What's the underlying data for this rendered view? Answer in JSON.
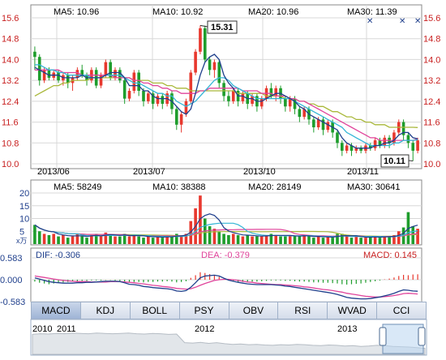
{
  "colors": {
    "up": "#e8382e",
    "down": "#1e9d2c",
    "ma5": "#1f3f8c",
    "ma10": "#33b5d6",
    "ma20": "#e0449b",
    "ma30": "#a9b83a",
    "axis_red": "#c81e1e",
    "axis_blue": "#1f3f8c",
    "grid": "#d8d8d8"
  },
  "chart_data": [
    {
      "type": "candlestick",
      "name": "price",
      "legend": {
        "ma5": "MA5: 10.96",
        "ma10": "MA10: 10.92",
        "ma20": "MA20: 10.96",
        "ma30": "MA30: 11.39"
      },
      "y_ticks": [
        "15.6",
        "14.8",
        "14.0",
        "13.2",
        "12.4",
        "11.6",
        "10.8",
        "10.0"
      ],
      "ylim": [
        10.0,
        15.6
      ],
      "x_labels": [
        "2013/06",
        "2013/07",
        "2013/10",
        "2013/11"
      ],
      "annotations": {
        "high": "15.31",
        "low": "10.11"
      },
      "high_value": 15.31,
      "low_value": 10.11,
      "candles": [
        [
          14.3,
          14.1,
          14.5,
          13.6
        ],
        [
          14.1,
          13.2,
          14.2,
          13.0
        ],
        [
          13.2,
          13.6,
          13.7,
          13.1
        ],
        [
          13.6,
          13.3,
          13.7,
          13.2
        ],
        [
          13.3,
          13.5,
          13.6,
          13.2
        ],
        [
          13.5,
          13.2,
          13.6,
          13.1
        ],
        [
          13.2,
          13.4,
          13.5,
          13.0
        ],
        [
          13.4,
          13.1,
          13.5,
          12.9
        ],
        [
          13.1,
          13.3,
          13.4,
          12.8
        ],
        [
          13.3,
          13.6,
          13.7,
          13.2
        ],
        [
          13.6,
          13.4,
          13.8,
          13.3
        ],
        [
          13.4,
          13.2,
          13.5,
          13.0
        ],
        [
          13.2,
          13.6,
          13.7,
          13.1
        ],
        [
          13.6,
          13.0,
          13.7,
          12.9
        ],
        [
          13.0,
          13.4,
          13.5,
          12.9
        ],
        [
          13.4,
          13.9,
          14.0,
          13.3
        ],
        [
          13.9,
          13.3,
          14.0,
          13.2
        ],
        [
          13.3,
          13.6,
          13.7,
          13.2
        ],
        [
          13.6,
          13.2,
          13.7,
          13.1
        ],
        [
          13.2,
          12.5,
          13.3,
          12.3
        ],
        [
          12.5,
          12.8,
          12.9,
          12.4
        ],
        [
          12.8,
          13.5,
          13.6,
          12.7
        ],
        [
          13.5,
          12.8,
          13.6,
          12.6
        ],
        [
          12.8,
          12.4,
          12.9,
          12.2
        ],
        [
          12.4,
          12.7,
          12.8,
          12.3
        ],
        [
          12.7,
          12.3,
          12.8,
          12.1
        ],
        [
          12.3,
          12.6,
          12.7,
          12.2
        ],
        [
          12.6,
          12.3,
          12.7,
          12.1
        ],
        [
          12.3,
          12.7,
          12.8,
          12.2
        ],
        [
          12.7,
          12.1,
          12.8,
          11.9
        ],
        [
          12.1,
          11.5,
          12.2,
          11.3
        ],
        [
          11.5,
          11.9,
          12.0,
          11.2
        ],
        [
          11.9,
          12.4,
          12.5,
          11.8
        ],
        [
          12.4,
          13.5,
          13.6,
          12.3
        ],
        [
          13.5,
          14.3,
          14.4,
          13.4
        ],
        [
          14.3,
          15.2,
          15.31,
          14.2
        ],
        [
          15.2,
          14.0,
          15.3,
          13.9
        ],
        [
          14.0,
          13.6,
          14.1,
          13.4
        ],
        [
          13.6,
          13.9,
          14.0,
          13.3
        ],
        [
          13.9,
          13.1,
          14.0,
          12.9
        ],
        [
          13.1,
          12.6,
          13.2,
          12.4
        ],
        [
          12.6,
          12.4,
          12.8,
          12.2
        ],
        [
          12.4,
          12.8,
          12.9,
          12.3
        ],
        [
          12.8,
          12.4,
          12.9,
          12.2
        ],
        [
          12.4,
          12.7,
          12.8,
          12.3
        ],
        [
          12.7,
          12.3,
          12.8,
          12.1
        ],
        [
          12.3,
          12.6,
          12.7,
          12.2
        ],
        [
          12.6,
          12.2,
          12.7,
          12.0
        ],
        [
          12.2,
          12.5,
          12.6,
          12.1
        ],
        [
          12.5,
          12.9,
          13.0,
          12.4
        ],
        [
          12.9,
          12.6,
          13.1,
          12.5
        ],
        [
          12.6,
          12.9,
          13.0,
          12.4
        ],
        [
          12.9,
          12.5,
          13.0,
          12.3
        ],
        [
          12.5,
          12.2,
          12.6,
          12.0
        ],
        [
          12.2,
          12.5,
          12.6,
          12.0
        ],
        [
          12.5,
          12.1,
          12.6,
          11.9
        ],
        [
          12.1,
          11.8,
          12.2,
          11.6
        ],
        [
          11.8,
          12.1,
          12.2,
          11.7
        ],
        [
          12.1,
          11.7,
          12.2,
          11.5
        ],
        [
          11.7,
          11.4,
          11.8,
          11.2
        ],
        [
          11.4,
          11.7,
          11.8,
          11.3
        ],
        [
          11.7,
          11.3,
          11.8,
          11.1
        ],
        [
          11.3,
          11.6,
          11.7,
          11.2
        ],
        [
          11.6,
          11.2,
          11.7,
          11.0
        ],
        [
          11.2,
          10.8,
          11.3,
          10.6
        ],
        [
          10.8,
          10.5,
          10.9,
          10.3
        ],
        [
          10.5,
          10.7,
          10.8,
          10.4
        ],
        [
          10.7,
          10.5,
          10.8,
          10.3
        ],
        [
          10.5,
          10.6,
          10.7,
          10.4
        ],
        [
          10.6,
          10.5,
          10.7,
          10.4
        ],
        [
          10.5,
          10.7,
          10.8,
          10.4
        ],
        [
          10.7,
          10.6,
          10.8,
          10.5
        ],
        [
          10.6,
          10.9,
          11.0,
          10.5
        ],
        [
          10.9,
          10.7,
          11.0,
          10.6
        ],
        [
          10.7,
          11.0,
          11.1,
          10.6
        ],
        [
          11.0,
          10.8,
          11.1,
          10.6
        ],
        [
          10.8,
          11.2,
          11.3,
          10.7
        ],
        [
          11.2,
          11.6,
          11.7,
          11.1
        ],
        [
          11.6,
          11.1,
          11.7,
          10.9
        ],
        [
          11.1,
          10.8,
          11.2,
          10.6
        ],
        [
          10.8,
          10.5,
          10.9,
          10.11
        ],
        [
          10.5,
          10.9,
          11.0,
          10.4
        ]
      ],
      "ma_series": {
        "ma5": [
          13.7,
          13.6,
          13.5,
          13.4,
          13.4,
          13.4,
          13.3,
          13.3,
          13.3,
          13.3,
          13.4,
          13.3,
          13.3,
          13.3,
          13.3,
          13.4,
          13.5,
          13.5,
          13.5,
          13.3,
          13.0,
          13.0,
          13.0,
          12.8,
          12.8,
          12.6,
          12.5,
          12.5,
          12.5,
          12.4,
          12.2,
          12.0,
          11.9,
          12.1,
          12.7,
          13.4,
          13.9,
          14.1,
          14.2,
          14.0,
          13.4,
          13.1,
          12.9,
          12.6,
          12.6,
          12.5,
          12.5,
          12.4,
          12.4,
          12.5,
          12.6,
          12.7,
          12.7,
          12.6,
          12.5,
          12.4,
          12.2,
          12.1,
          11.9,
          11.8,
          11.7,
          11.6,
          11.5,
          11.4,
          11.3,
          11.0,
          10.8,
          10.7,
          10.6,
          10.6,
          10.6,
          10.6,
          10.7,
          10.7,
          10.8,
          10.8,
          10.9,
          11.1,
          11.2,
          11.2,
          11.0,
          10.96
        ],
        "ma10": [
          13.8,
          13.8,
          13.7,
          13.6,
          13.6,
          13.5,
          13.5,
          13.4,
          13.4,
          13.4,
          13.4,
          13.4,
          13.3,
          13.3,
          13.3,
          13.4,
          13.4,
          13.4,
          13.4,
          13.3,
          13.2,
          13.1,
          13.1,
          13.0,
          12.9,
          12.8,
          12.7,
          12.7,
          12.6,
          12.6,
          12.4,
          12.3,
          12.2,
          12.3,
          12.4,
          12.6,
          12.8,
          13.0,
          13.2,
          13.3,
          13.3,
          13.2,
          13.0,
          12.9,
          12.8,
          12.7,
          12.6,
          12.5,
          12.5,
          12.5,
          12.5,
          12.5,
          12.5,
          12.5,
          12.5,
          12.4,
          12.3,
          12.2,
          12.1,
          12.0,
          11.9,
          11.8,
          11.7,
          11.6,
          11.5,
          11.4,
          11.2,
          11.1,
          11.0,
          10.9,
          10.8,
          10.7,
          10.7,
          10.7,
          10.7,
          10.7,
          10.8,
          10.8,
          10.9,
          10.9,
          10.9,
          10.92
        ],
        "ma20": [
          13.6,
          13.6,
          13.6,
          13.6,
          13.6,
          13.6,
          13.5,
          13.5,
          13.5,
          13.5,
          13.4,
          13.4,
          13.4,
          13.4,
          13.4,
          13.4,
          13.4,
          13.3,
          13.3,
          13.3,
          13.3,
          13.2,
          13.2,
          13.1,
          13.1,
          13.0,
          13.0,
          12.9,
          12.9,
          12.8,
          12.8,
          12.7,
          12.7,
          12.7,
          12.7,
          12.8,
          12.8,
          12.9,
          12.9,
          12.9,
          12.9,
          12.9,
          12.9,
          12.9,
          12.8,
          12.8,
          12.8,
          12.8,
          12.7,
          12.7,
          12.7,
          12.6,
          12.6,
          12.6,
          12.5,
          12.5,
          12.4,
          12.4,
          12.3,
          12.2,
          12.1,
          12.0,
          11.9,
          11.8,
          11.7,
          11.6,
          11.5,
          11.4,
          11.3,
          11.2,
          11.1,
          11.0,
          11.0,
          10.9,
          10.9,
          10.9,
          10.9,
          10.9,
          10.9,
          10.9,
          10.9,
          10.96
        ],
        "ma30": [
          12.6,
          12.7,
          12.8,
          12.9,
          13.0,
          13.0,
          13.1,
          13.1,
          13.2,
          13.2,
          13.2,
          13.2,
          13.3,
          13.3,
          13.3,
          13.3,
          13.3,
          13.3,
          13.3,
          13.3,
          13.3,
          13.2,
          13.2,
          13.2,
          13.2,
          13.1,
          13.1,
          13.1,
          13.0,
          13.0,
          12.9,
          12.9,
          12.9,
          12.8,
          12.8,
          12.8,
          12.8,
          12.8,
          12.8,
          12.8,
          12.8,
          12.8,
          12.8,
          12.7,
          12.7,
          12.7,
          12.7,
          12.7,
          12.7,
          12.6,
          12.6,
          12.6,
          12.6,
          12.5,
          12.5,
          12.5,
          12.4,
          12.4,
          12.3,
          12.3,
          12.2,
          12.2,
          12.1,
          12.0,
          12.0,
          11.9,
          11.8,
          11.8,
          11.7,
          11.7,
          11.6,
          11.6,
          11.5,
          11.5,
          11.5,
          11.4,
          11.4,
          11.4,
          11.4,
          11.4,
          11.4,
          11.39
        ]
      }
    },
    {
      "type": "bar",
      "name": "volume",
      "legend": {
        "ma5": "MA5: 58249",
        "ma10": "MA10: 38388",
        "ma20": "MA20: 28149",
        "ma30": "MA30: 30641"
      },
      "y_ticks": [
        "20",
        "15",
        "10",
        "5"
      ],
      "unit": "x万",
      "ylim": [
        0,
        20
      ],
      "values": [
        7.5,
        5,
        4,
        3.5,
        4,
        3,
        3.5,
        2.5,
        3,
        4,
        3,
        2.5,
        3.5,
        4,
        3,
        4.5,
        3.5,
        3,
        3,
        4,
        3,
        3.5,
        3,
        2.5,
        3,
        2.5,
        3,
        2.5,
        3,
        3,
        4,
        3.5,
        4,
        9,
        14,
        19,
        10,
        7,
        6,
        5,
        4,
        3.5,
        4,
        3.5,
        3,
        3.5,
        3,
        3,
        3,
        3.5,
        4,
        3.5,
        3,
        3,
        3.5,
        3,
        3,
        3.5,
        3,
        2.5,
        3,
        2.5,
        3,
        2.5,
        4,
        4,
        3,
        2.5,
        3,
        2.5,
        2.5,
        3,
        3,
        2.5,
        3,
        3,
        3.5,
        5,
        6.5,
        12.5,
        7,
        6
      ]
    },
    {
      "type": "bar",
      "name": "macd",
      "legend": {
        "dif": "DIF: -0.306",
        "dea": "DEA: -0.379",
        "macd": "MACD: 0.145"
      },
      "y_ticks": [
        "0.583",
        "0.000",
        "-0.583"
      ],
      "ylim": [
        -0.583,
        0.583
      ],
      "values": [
        -0.05,
        -0.08,
        -0.1,
        -0.12,
        -0.1,
        -0.08,
        -0.07,
        -0.06,
        -0.05,
        -0.04,
        -0.03,
        -0.03,
        -0.02,
        -0.02,
        -0.02,
        -0.01,
        -0.01,
        -0.02,
        -0.03,
        -0.05,
        -0.07,
        -0.06,
        -0.06,
        -0.07,
        -0.06,
        -0.06,
        -0.05,
        -0.05,
        -0.04,
        -0.05,
        -0.07,
        -0.06,
        -0.04,
        0.05,
        0.12,
        0.2,
        0.18,
        0.15,
        0.12,
        0.08,
        0.02,
        -0.02,
        -0.04,
        -0.06,
        -0.06,
        -0.06,
        -0.05,
        -0.05,
        -0.04,
        -0.03,
        -0.02,
        -0.02,
        -0.02,
        -0.03,
        -0.03,
        -0.04,
        -0.05,
        -0.05,
        -0.06,
        -0.07,
        -0.07,
        -0.08,
        -0.08,
        -0.09,
        -0.1,
        -0.12,
        -0.13,
        -0.12,
        -0.11,
        -0.1,
        -0.08,
        -0.06,
        -0.04,
        -0.02,
        0.01,
        0.03,
        0.06,
        0.1,
        0.13,
        0.12,
        0.14,
        0.145
      ],
      "dif": [
        0.05,
        0.02,
        -0.02,
        -0.05,
        -0.07,
        -0.08,
        -0.09,
        -0.09,
        -0.09,
        -0.08,
        -0.08,
        -0.07,
        -0.07,
        -0.06,
        -0.05,
        -0.04,
        -0.04,
        -0.04,
        -0.05,
        -0.08,
        -0.12,
        -0.13,
        -0.15,
        -0.18,
        -0.19,
        -0.21,
        -0.22,
        -0.23,
        -0.24,
        -0.26,
        -0.3,
        -0.31,
        -0.29,
        -0.2,
        -0.08,
        0.05,
        0.1,
        0.11,
        0.12,
        0.1,
        0.04,
        -0.01,
        -0.04,
        -0.07,
        -0.09,
        -0.11,
        -0.12,
        -0.13,
        -0.13,
        -0.13,
        -0.13,
        -0.14,
        -0.15,
        -0.17,
        -0.18,
        -0.2,
        -0.22,
        -0.24,
        -0.26,
        -0.28,
        -0.3,
        -0.32,
        -0.34,
        -0.36,
        -0.39,
        -0.43,
        -0.47,
        -0.49,
        -0.5,
        -0.51,
        -0.51,
        -0.5,
        -0.48,
        -0.46,
        -0.43,
        -0.4,
        -0.36,
        -0.31,
        -0.27,
        -0.28,
        -0.3,
        -0.306
      ],
      "dea": [
        0.1,
        0.08,
        0.06,
        0.04,
        0.02,
        0.0,
        -0.02,
        -0.03,
        -0.04,
        -0.05,
        -0.05,
        -0.05,
        -0.06,
        -0.06,
        -0.06,
        -0.06,
        -0.05,
        -0.05,
        -0.05,
        -0.06,
        -0.07,
        -0.08,
        -0.1,
        -0.11,
        -0.13,
        -0.15,
        -0.16,
        -0.18,
        -0.19,
        -0.21,
        -0.23,
        -0.24,
        -0.25,
        -0.24,
        -0.2,
        -0.15,
        -0.1,
        -0.06,
        -0.02,
        0.0,
        0.01,
        0.01,
        0.0,
        -0.02,
        -0.04,
        -0.06,
        -0.07,
        -0.09,
        -0.1,
        -0.11,
        -0.12,
        -0.13,
        -0.13,
        -0.14,
        -0.15,
        -0.16,
        -0.17,
        -0.19,
        -0.2,
        -0.22,
        -0.24,
        -0.26,
        -0.27,
        -0.29,
        -0.31,
        -0.33,
        -0.36,
        -0.38,
        -0.4,
        -0.42,
        -0.44,
        -0.45,
        -0.46,
        -0.46,
        -0.45,
        -0.44,
        -0.42,
        -0.4,
        -0.37,
        -0.36,
        -0.37,
        -0.379
      ]
    },
    {
      "type": "area",
      "name": "navigator",
      "year_labels": [
        "2010",
        "2011",
        "2012",
        "2013"
      ],
      "values": [
        0.6,
        0.62,
        0.61,
        0.63,
        0.62,
        0.64,
        0.63,
        0.62,
        0.64,
        0.63,
        0.62,
        0.63,
        0.64,
        0.62,
        0.61,
        0.63,
        0.62,
        0.6,
        0.61,
        0.35,
        0.34,
        0.36,
        0.33,
        0.35,
        0.32,
        0.3,
        0.31,
        0.29,
        0.3,
        0.28,
        0.27,
        0.29,
        0.28,
        0.3,
        0.29,
        0.27,
        0.26,
        0.28,
        0.27,
        0.25,
        0.26,
        0.24,
        0.25,
        0.27,
        0.26,
        0.24,
        0.23,
        0.22,
        0.2,
        0.18
      ]
    }
  ],
  "tabs": [
    "MACD",
    "KDJ",
    "BOLL",
    "PSY",
    "OBV",
    "RSI",
    "WVAD",
    "CCI"
  ],
  "active_tab": "MACD"
}
